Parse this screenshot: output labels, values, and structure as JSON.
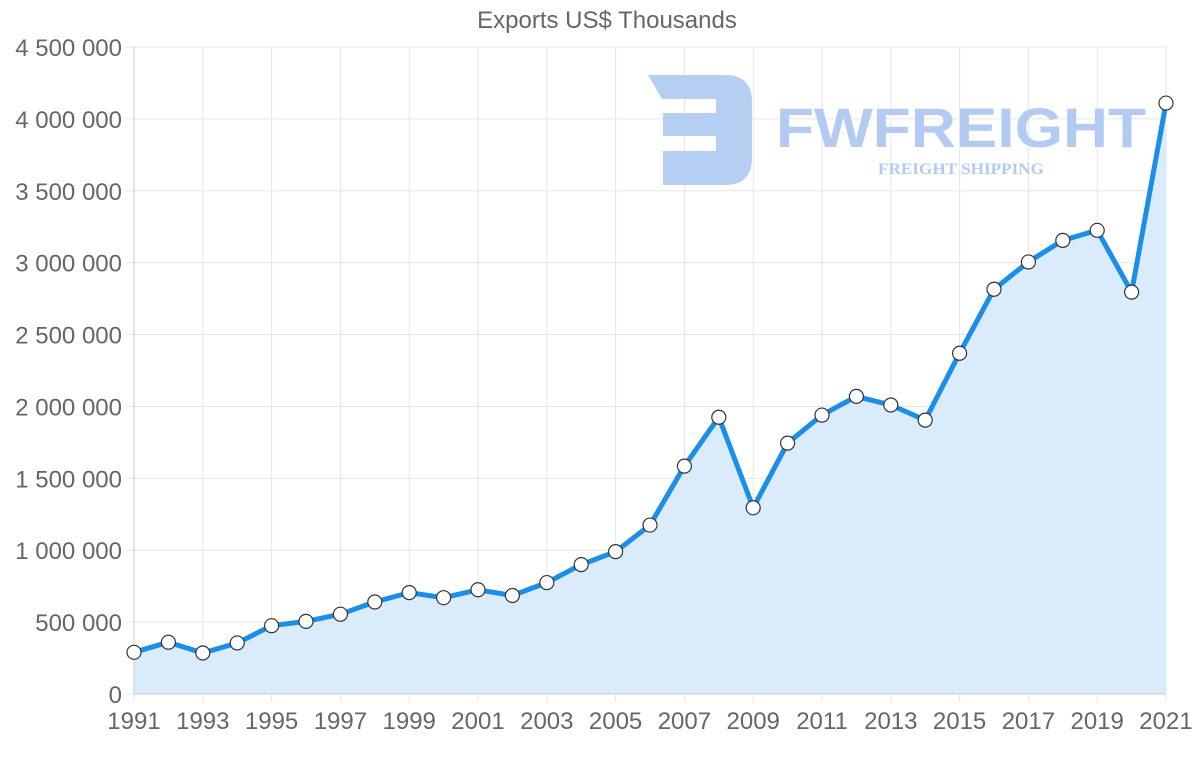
{
  "chart_data": {
    "type": "line",
    "title": "Exports US$ Thousands",
    "xlabel": "",
    "ylabel": "",
    "x": [
      1991,
      1992,
      1993,
      1994,
      1995,
      1996,
      1997,
      1998,
      1999,
      2000,
      2001,
      2002,
      2003,
      2004,
      2005,
      2006,
      2007,
      2008,
      2009,
      2010,
      2011,
      2012,
      2013,
      2014,
      2015,
      2016,
      2017,
      2018,
      2019,
      2020,
      2021
    ],
    "series": [
      {
        "name": "Exports US$ Thousands",
        "values": [
          290000,
          360000,
          285000,
          355000,
          475000,
          505000,
          555000,
          640000,
          705000,
          670000,
          725000,
          685000,
          775000,
          900000,
          990000,
          1175000,
          1585000,
          1925000,
          1295000,
          1745000,
          1940000,
          2070000,
          2010000,
          1905000,
          2370000,
          2815000,
          3005000,
          3155000,
          3225000,
          2795000,
          4110000
        ],
        "color": "#1a8ee8",
        "fill": "#d8ebfb"
      }
    ],
    "ylim": [
      0,
      4500000
    ],
    "yticks": [
      "0",
      "500 000",
      "1 000 000",
      "1 500 000",
      "2 000 000",
      "2 500 000",
      "3 000 000",
      "3 500 000",
      "4 000 000",
      "4 500 000"
    ],
    "xticks": [
      "1991",
      "1993",
      "1995",
      "1997",
      "1999",
      "2001",
      "2003",
      "2005",
      "2007",
      "2009",
      "2011",
      "2013",
      "2015",
      "2017",
      "2019",
      "2021"
    ],
    "grid": true,
    "legend": "none",
    "area_fill": true
  },
  "watermark": {
    "brand": "FWFREIGHT",
    "tagline": "FREIGHT SHIPPING",
    "color": "#b3cbf2"
  }
}
